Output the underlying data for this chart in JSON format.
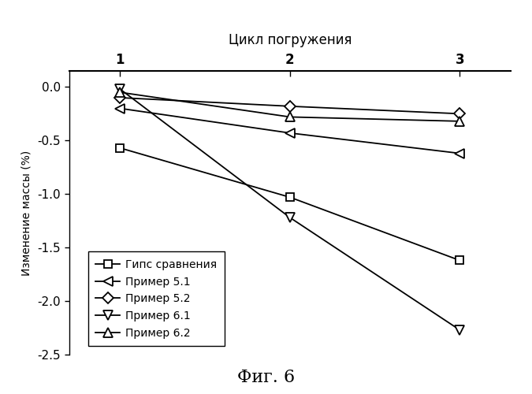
{
  "title_top": "Цикл погружения",
  "ylabel": "Изменение массы (%)",
  "caption": "Фиг. 6",
  "x": [
    1,
    2,
    3
  ],
  "series": [
    {
      "label": "Гипс сравнения",
      "y": [
        -0.57,
        -1.03,
        -1.62
      ],
      "marker": "s",
      "color": "#000000"
    },
    {
      "label": "Пример 5.1",
      "y": [
        -0.2,
        -0.43,
        -0.62
      ],
      "marker": "<",
      "color": "#000000"
    },
    {
      "label": "Пример 5.2",
      "y": [
        -0.1,
        -0.18,
        -0.25
      ],
      "marker": "D",
      "color": "#000000"
    },
    {
      "label": "Пример 6.1",
      "y": [
        -0.02,
        -1.22,
        -2.27
      ],
      "marker": "v",
      "color": "#000000"
    },
    {
      "label": "Пример 6.2",
      "y": [
        -0.05,
        -0.28,
        -0.32
      ],
      "marker": "^",
      "color": "#000000"
    }
  ],
  "xlim": [
    0.7,
    3.3
  ],
  "ylim": [
    -2.5,
    0.15
  ],
  "xticks": [
    1,
    2,
    3
  ],
  "yticks": [
    0.0,
    -0.5,
    -1.0,
    -1.5,
    -2.0,
    -2.5
  ],
  "background_color": "#ffffff",
  "legend_labels_bold_numbers": true
}
